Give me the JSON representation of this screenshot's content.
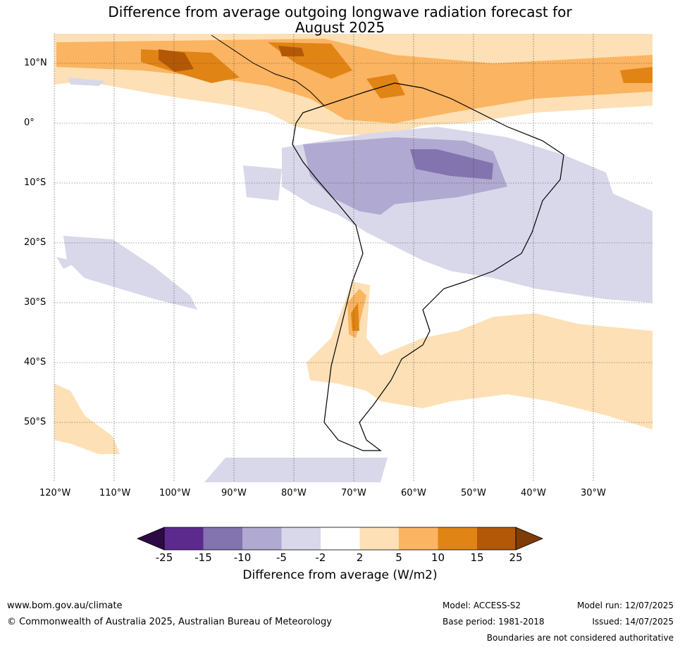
{
  "title_line1": "Difference from average outgoing longwave radiation forecast for",
  "title_line2": "August 2025",
  "lat_labels": [
    "10°N",
    "0°",
    "10°S",
    "20°S",
    "30°S",
    "40°S",
    "50°S"
  ],
  "lon_labels": [
    "120°W",
    "110°W",
    "100°W",
    "90°W",
    "80°W",
    "70°W",
    "60°W",
    "50°W",
    "40°W",
    "30°W"
  ],
  "colorbar": {
    "colors": [
      "#2d0a45",
      "#5c2a8c",
      "#8373ae",
      "#b0a9d1",
      "#d8d8ea",
      "#ffffff",
      "#fde0b5",
      "#fbb461",
      "#e08415",
      "#b35806",
      "#7f3b08"
    ],
    "tick_labels": [
      "-25",
      "-15",
      "-10",
      "-5",
      "-2",
      "2",
      "5",
      "10",
      "15",
      "25"
    ],
    "label": "Difference from average (W/m2)"
  },
  "footer": {
    "website": "www.bom.gov.au/climate",
    "copyright": "© Commonwealth of Australia 2025, Australian Bureau of Meteorology",
    "model": "Model: ACCESS-S2",
    "base_period": "Base period: 1981-2018",
    "model_run": "Model run: 12/07/2025",
    "issued": "Issued: 14/07/2025",
    "disclaimer": "Boundaries are not considered authoritative"
  }
}
